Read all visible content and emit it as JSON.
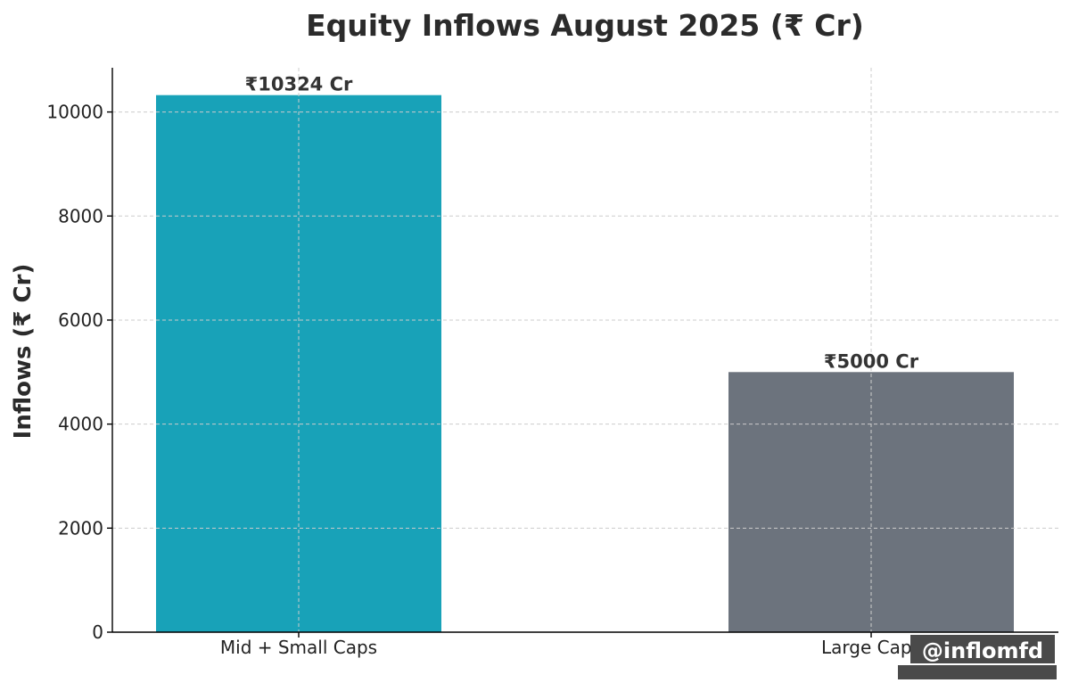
{
  "chart_data": {
    "type": "bar",
    "title": "Equity Inflows August 2025 (₹ Cr)",
    "xlabel": "",
    "ylabel": "Inflows (₹ Cr)",
    "categories": [
      "Mid + Small Caps",
      "Large Caps"
    ],
    "values": [
      10324,
      5000
    ],
    "data_labels": [
      "₹10324 Cr",
      "₹5000 Cr"
    ],
    "colors": [
      "#18a2b8",
      "#6c737d"
    ],
    "ylim": [
      0,
      10850
    ],
    "yticks": [
      0,
      2000,
      4000,
      6000,
      8000,
      10000
    ],
    "grid": true
  },
  "watermark": {
    "text": "@inflomfd",
    "color": "#4a4a4a"
  }
}
